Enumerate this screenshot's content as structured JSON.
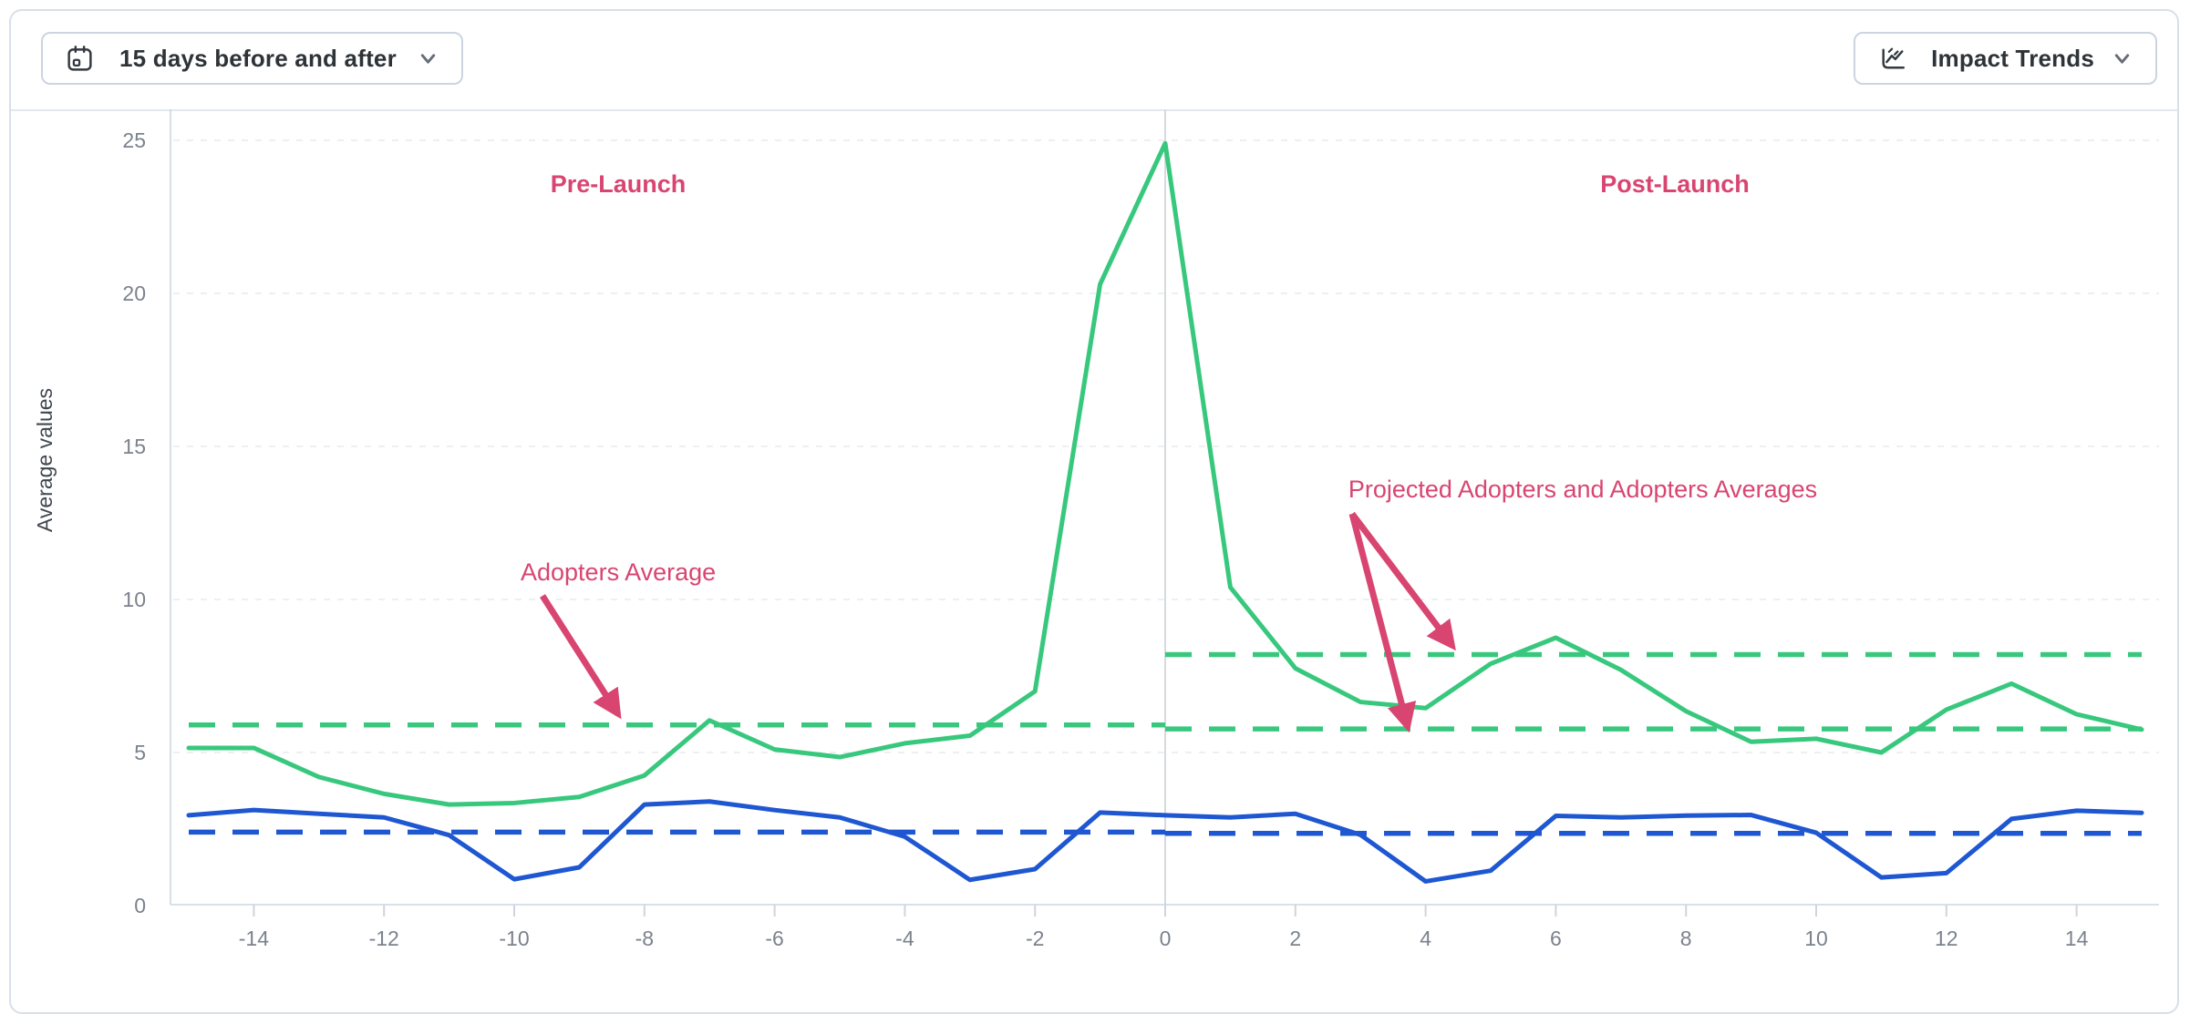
{
  "header": {
    "date_range_button": {
      "label": "15 days before and after",
      "icon": "calendar-icon"
    },
    "trends_button": {
      "label": "Impact Trends",
      "icon": "trend-chart-icon"
    }
  },
  "chart_data": {
    "type": "line",
    "title": "",
    "xlabel": "",
    "ylabel": "Average values",
    "xlim": [
      -15.3,
      15.3
    ],
    "ylim": [
      0,
      26
    ],
    "grid": "horizontal-dashed",
    "legend_position": "none",
    "launch_line_x": 0,
    "x_ticks": [
      -14,
      -12,
      -10,
      -8,
      -6,
      -4,
      -2,
      0,
      2,
      4,
      6,
      8,
      10,
      12,
      14
    ],
    "y_ticks": [
      0,
      5,
      10,
      15,
      20,
      25
    ],
    "x": [
      -15,
      -14,
      -13,
      -12,
      -11,
      -10,
      -9,
      -8,
      -7,
      -6,
      -5,
      -4,
      -3,
      -2,
      -1,
      0,
      1,
      2,
      3,
      4,
      5,
      6,
      7,
      8,
      9,
      10,
      11,
      12,
      13,
      14,
      15
    ],
    "series": [
      {
        "name": "adopters",
        "color": "#38c87d",
        "style": "solid",
        "values": [
          5.15,
          5.15,
          4.2,
          3.65,
          3.3,
          3.35,
          3.55,
          4.25,
          6.05,
          5.1,
          4.85,
          5.3,
          5.55,
          7.0,
          20.3,
          24.9,
          10.4,
          7.75,
          6.65,
          6.45,
          7.9,
          8.75,
          7.7,
          6.35,
          5.35,
          5.45,
          5.0,
          6.4,
          7.25,
          6.25,
          5.75
        ]
      },
      {
        "name": "comparison",
        "color": "#1e57d1",
        "style": "solid",
        "values": [
          2.95,
          3.12,
          3.0,
          2.88,
          2.3,
          0.86,
          1.25,
          3.3,
          3.4,
          3.12,
          2.88,
          2.25,
          0.84,
          1.19,
          3.04,
          2.95,
          2.88,
          3.0,
          2.31,
          0.79,
          1.14,
          2.93,
          2.88,
          2.94,
          2.96,
          2.38,
          0.92,
          1.06,
          2.83,
          3.1,
          3.03
        ]
      }
    ],
    "reference_lines": [
      {
        "name": "adopters-average-pre-launch",
        "color": "#38c87d",
        "style": "dashed",
        "value": 5.9,
        "x_start": -15,
        "x_end": 0
      },
      {
        "name": "projected-adopters-average-post-launch",
        "color": "#38c87d",
        "style": "dashed",
        "value": 8.2,
        "x_start": 0,
        "x_end": 15
      },
      {
        "name": "adopters-average-post-launch",
        "color": "#38c87d",
        "style": "dashed",
        "value": 5.77,
        "x_start": 0,
        "x_end": 15
      },
      {
        "name": "comparison-average-pre-launch",
        "color": "#1e57d1",
        "style": "dashed",
        "value": 2.4,
        "x_start": -15,
        "x_end": 0
      },
      {
        "name": "comparison-average-post-launch",
        "color": "#1e57d1",
        "style": "dashed",
        "value": 2.36,
        "x_start": 0,
        "x_end": 15
      }
    ],
    "annotations": {
      "color": "#d84571",
      "pre_launch": "Pre-Launch",
      "post_launch": "Post-Launch",
      "adopters_average": "Adopters Average",
      "projected_adopters": "Projected Adopters and Adopters Averages"
    }
  }
}
